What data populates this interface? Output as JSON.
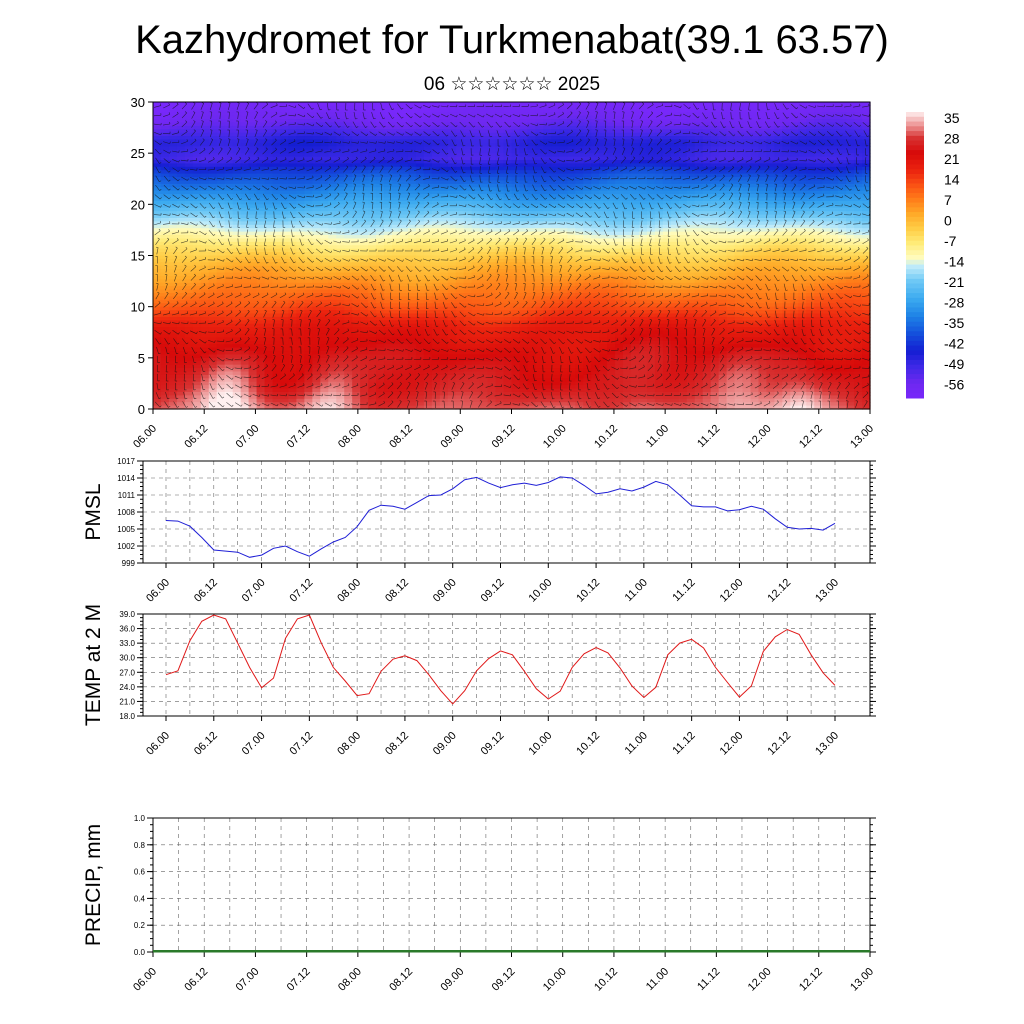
{
  "header": {
    "title": "Kazhydromet for Turkmenabat(39.1 63.57)",
    "subtitle": "06 ☆☆☆☆☆☆ 2025"
  },
  "time_labels": [
    "06.00",
    "06.12",
    "07.00",
    "07.12",
    "08.00",
    "08.12",
    "09.00",
    "09.12",
    "10.00",
    "10.12",
    "11.00",
    "11.12",
    "12.00",
    "12.12",
    "13.00"
  ],
  "colors": {
    "pmsl_line": "#1f1fd6",
    "temp_line": "#e01818",
    "precip_line": "#2a7a2a",
    "grid": "#666666",
    "axis": "#000000"
  },
  "chart_data": [
    {
      "type": "heatmap",
      "name": "temperature-wind cross-section",
      "ylim": [
        0,
        30
      ],
      "yticks": [
        0,
        5,
        10,
        15,
        20,
        25,
        30
      ],
      "colorbar": {
        "labels": [
          "35",
          "28",
          "21",
          "14",
          "7",
          "0",
          "-7",
          "-14",
          "-21",
          "-28",
          "-35",
          "-42",
          "-49",
          "-56"
        ],
        "range": [
          -60,
          38
        ]
      },
      "temperature_profile_by_height": [
        {
          "h": 0,
          "t": 30
        },
        {
          "h": 2,
          "t": 26
        },
        {
          "h": 5,
          "t": 24
        },
        {
          "h": 8,
          "t": 20
        },
        {
          "h": 10,
          "t": 13
        },
        {
          "h": 12,
          "t": 7
        },
        {
          "h": 14,
          "t": 1
        },
        {
          "h": 16,
          "t": -7
        },
        {
          "h": 17.5,
          "t": -14
        },
        {
          "h": 19,
          "t": -21
        },
        {
          "h": 21,
          "t": -30
        },
        {
          "h": 23,
          "t": -39
        },
        {
          "h": 24.5,
          "t": -49
        },
        {
          "h": 26,
          "t": -46
        },
        {
          "h": 28,
          "t": -55
        },
        {
          "h": 30,
          "t": -60
        }
      ],
      "warm_cores": [
        {
          "t": 0.75,
          "peak": 38
        },
        {
          "t": 1.75,
          "peak": 36
        },
        {
          "t": 4.75,
          "peak": 32
        },
        {
          "t": 5.75,
          "peak": 33
        },
        {
          "t": 6.3,
          "peak": 34
        }
      ]
    },
    {
      "type": "line",
      "name": "PMSL",
      "ylabel": "PMSL",
      "ylim": [
        999,
        1017
      ],
      "yticks": [
        999,
        1002,
        1005,
        1008,
        1011,
        1014,
        1017
      ],
      "x_step_hours": 3,
      "values": [
        1006.5,
        1006.4,
        1005.5,
        1003.5,
        1001.3,
        1001.1,
        1000.9,
        1000.0,
        1000.4,
        1001.6,
        1002.0,
        1001.0,
        1000.2,
        1001.5,
        1002.7,
        1003.5,
        1005.4,
        1008.3,
        1009.2,
        1009.0,
        1008.5,
        1009.7,
        1010.9,
        1011.0,
        1012.1,
        1013.7,
        1014.1,
        1013.1,
        1012.3,
        1012.8,
        1013.1,
        1012.7,
        1013.2,
        1014.2,
        1014.0,
        1012.7,
        1011.2,
        1011.5,
        1012.1,
        1011.7,
        1012.4,
        1013.4,
        1012.8,
        1011.0,
        1009.1,
        1008.9,
        1008.9,
        1008.2,
        1008.4,
        1009.0,
        1008.5,
        1006.8,
        1005.3,
        1005.0,
        1005.1,
        1004.8,
        1006.0
      ]
    },
    {
      "type": "line",
      "name": "TEMP at 2 M",
      "ylabel": "TEMP at 2 M",
      "ylim": [
        18,
        39
      ],
      "yticks": [
        "18.0",
        "21.0",
        "24.0",
        "27.0",
        "30.0",
        "33.0",
        "36.0",
        "39.0"
      ],
      "x_step_hours": 3,
      "values": [
        26.5,
        27.3,
        33.5,
        37.5,
        38.8,
        38.0,
        33.0,
        28.0,
        23.8,
        25.8,
        34.0,
        38.0,
        38.8,
        33.0,
        28.0,
        25.2,
        22.2,
        22.6,
        27.2,
        29.7,
        30.4,
        29.4,
        26.5,
        23.2,
        20.5,
        23.2,
        27.3,
        29.8,
        31.4,
        30.6,
        27.2,
        23.6,
        21.5,
        23.1,
        28.0,
        30.8,
        32.1,
        31.0,
        27.9,
        24.2,
        21.8,
        23.9,
        30.6,
        33.0,
        33.8,
        32.0,
        28.0,
        24.9,
        21.9,
        24.2,
        31.3,
        34.3,
        35.8,
        34.8,
        30.6,
        26.9,
        24.3
      ]
    },
    {
      "type": "line",
      "name": "PRECIP",
      "ylabel": "PRECIP, mm",
      "ylim": [
        0,
        1
      ],
      "yticks": [
        "0.0",
        "0.2",
        "0.4",
        "0.6",
        "0.8",
        "1.0"
      ],
      "values": [
        0,
        0
      ]
    }
  ]
}
